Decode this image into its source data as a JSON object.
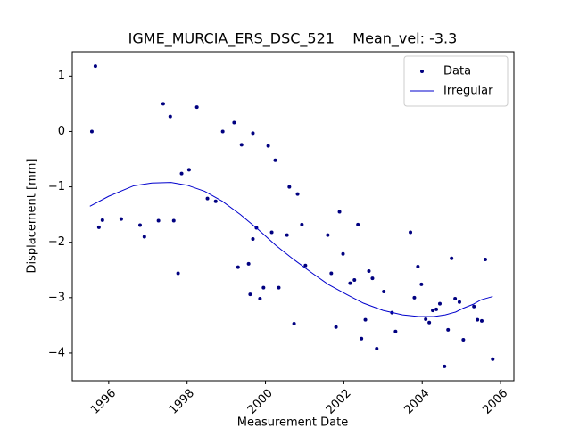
{
  "chart_data": {
    "type": "scatter",
    "title": "IGME_MURCIA_ERS_DSC_521    Mean_vel: -3.3",
    "xlabel": "Measurement Date",
    "ylabel": "Displacement [mm]",
    "xlim": [
      1995.07,
      2006.34
    ],
    "ylim": [
      -4.5,
      1.44
    ],
    "xticks": [
      1996,
      1998,
      2000,
      2002,
      2004,
      2006
    ],
    "yticks": [
      {
        "value": -4,
        "label": "−4"
      },
      {
        "value": -3,
        "label": "−3"
      },
      {
        "value": -2,
        "label": "−2"
      },
      {
        "value": -1,
        "label": "−1"
      },
      0,
      1
    ],
    "legend": "upper right",
    "series": [
      {
        "name": "Data",
        "type": "scatter",
        "color": "#000080",
        "x": [
          1995.57,
          1995.66,
          1995.75,
          1995.84,
          1996.32,
          1996.8,
          1996.91,
          1997.27,
          1997.39,
          1997.57,
          1997.66,
          1997.77,
          1997.86,
          1998.05,
          1998.25,
          1998.52,
          1998.73,
          1998.91,
          1999.2,
          1999.3,
          1999.39,
          1999.57,
          1999.61,
          1999.68,
          1999.68,
          1999.77,
          1999.86,
          1999.95,
          2000.07,
          2000.16,
          2000.25,
          2000.34,
          2000.55,
          2000.61,
          2000.73,
          2000.82,
          2000.93,
          2001.02,
          2001.59,
          2001.68,
          2001.8,
          2001.89,
          2001.98,
          2002.16,
          2002.27,
          2002.36,
          2002.45,
          2002.55,
          2002.64,
          2002.73,
          2002.84,
          2003.02,
          2003.23,
          2003.32,
          2003.7,
          2003.8,
          2003.89,
          2003.98,
          2004.09,
          2004.18,
          2004.27,
          2004.36,
          2004.45,
          2004.57,
          2004.66,
          2004.75,
          2004.84,
          2004.95,
          2005.05,
          2005.32,
          2005.41,
          2005.52,
          2005.61,
          2005.8
        ],
        "values": [
          0.0,
          1.18,
          -1.73,
          -1.6,
          -1.58,
          -1.69,
          -1.9,
          -1.61,
          0.5,
          0.27,
          -1.61,
          -2.56,
          -0.76,
          -0.69,
          0.44,
          -1.21,
          -1.26,
          0.0,
          0.16,
          -2.45,
          -0.24,
          -2.39,
          -2.94,
          -0.03,
          -1.94,
          -1.74,
          -3.02,
          -2.82,
          -0.26,
          -1.82,
          -0.52,
          -2.82,
          -1.87,
          -1.0,
          -3.47,
          -1.13,
          -1.68,
          -2.42,
          -1.87,
          -2.56,
          -3.53,
          -1.45,
          -2.21,
          -2.74,
          -2.68,
          -1.68,
          -3.74,
          -3.4,
          -2.52,
          -2.65,
          -3.92,
          -2.89,
          -3.27,
          -3.61,
          -1.82,
          -3.0,
          -2.44,
          -2.76,
          -3.39,
          -3.45,
          -3.23,
          -3.21,
          -3.11,
          -4.24,
          -3.58,
          -2.29,
          -3.02,
          -3.08,
          -3.76,
          -3.16,
          -3.4,
          -3.42,
          -2.31,
          -4.11
        ]
      },
      {
        "name": "Irregular",
        "type": "line",
        "color": "#0000cc",
        "x": [
          1995.52,
          1996.0,
          1996.64,
          1997.1,
          1997.59,
          1998.0,
          1998.45,
          1998.9,
          1999.36,
          1999.8,
          2000.27,
          2000.7,
          2001.18,
          2001.6,
          2002.09,
          2002.5,
          2003.0,
          2003.5,
          2003.91,
          2004.3,
          2004.59,
          2004.85,
          2005.05,
          2005.3,
          2005.5,
          2005.8
        ],
        "values": [
          -1.35,
          -1.17,
          -0.98,
          -0.93,
          -0.92,
          -0.97,
          -1.08,
          -1.26,
          -1.5,
          -1.76,
          -2.06,
          -2.3,
          -2.55,
          -2.76,
          -2.95,
          -3.1,
          -3.23,
          -3.31,
          -3.34,
          -3.34,
          -3.31,
          -3.26,
          -3.19,
          -3.12,
          -3.04,
          -2.98
        ]
      }
    ]
  }
}
